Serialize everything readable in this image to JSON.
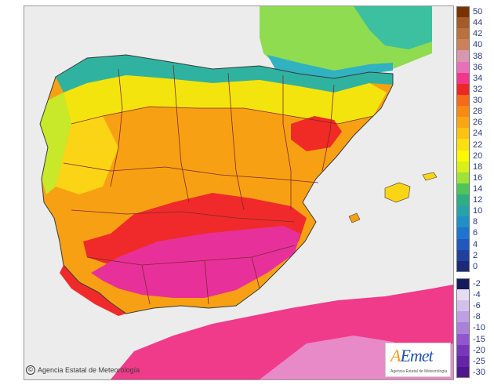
{
  "credit": "Agencia Estatal de Meteorología",
  "logo": {
    "brand": "AEmet",
    "a": "A",
    "e": "E",
    "met": "met",
    "subtitle": "Agencia Estatal de Meteorología"
  },
  "legend": {
    "labels": [
      "50",
      "44",
      "42",
      "40",
      "38",
      "36",
      "34",
      "32",
      "30",
      "28",
      "26",
      "24",
      "22",
      "20",
      "18",
      "16",
      "14",
      "12",
      "10",
      "8",
      "6",
      "4",
      "2",
      "0",
      "-2",
      "-4",
      "-6",
      "-8",
      "-10",
      "-15",
      "-20",
      "-25",
      "-30"
    ],
    "colors": [
      "#7b3100",
      "#a55a2a",
      "#b9703b",
      "#c9825a",
      "#d996b0",
      "#e870b8",
      "#f0378a",
      "#f02626",
      "#f46a18",
      "#f88a12",
      "#fba512",
      "#fcc312",
      "#fcdf0e",
      "#fef800",
      "#d8ef1a",
      "#9ee23a",
      "#4fc45a",
      "#2eae82",
      "#25a3a8",
      "#1e8fc7",
      "#1f74d0",
      "#2158bc",
      "#22409e",
      "#1c2978",
      "#16195a",
      "#e6dcf2",
      "#d2c0ea",
      "#bca0e2",
      "#a882d8",
      "#9257cf",
      "#7a35bd",
      "#6424a8",
      "#4e178e"
    ]
  },
  "colors": {
    "sea": "#ececec",
    "coast": "#3a3a3a",
    "border": "#7a2a2a"
  }
}
